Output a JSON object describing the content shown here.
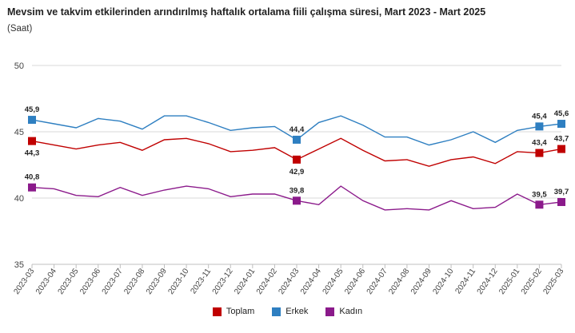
{
  "header": {
    "title": "Mevsim ve takvim etkilerinden arındırılmış haftalık ortalama fiili çalışma süresi, Mart 2023 - Mart 2025",
    "subtitle": "(Saat)"
  },
  "chart_data": {
    "type": "line",
    "title": "Mevsim ve takvim etkilerinden arındırılmış haftalık ortalama fiili çalışma süresi, Mart 2023 - Mart 2025",
    "ylabel": "(Saat)",
    "ylim": [
      35,
      50
    ],
    "yticks": [
      35,
      40,
      45,
      50
    ],
    "grid": true,
    "legend_position": "bottom",
    "categories": [
      "2023-03",
      "2023-04",
      "2023-05",
      "2023-06",
      "2023-07",
      "2023-08",
      "2023-09",
      "2023-10",
      "2023-11",
      "2023-12",
      "2024-01",
      "2024-02",
      "2024-03",
      "2024-04",
      "2024-05",
      "2024-06",
      "2024-07",
      "2024-08",
      "2024-09",
      "2024-10",
      "2024-11",
      "2024-12",
      "2025-01",
      "2025-02",
      "2025-03"
    ],
    "series": [
      {
        "name": "Toplam",
        "color": "#c00000",
        "values": [
          44.3,
          44.0,
          43.7,
          44.0,
          44.2,
          43.6,
          44.4,
          44.5,
          44.1,
          43.5,
          43.6,
          43.8,
          42.9,
          43.7,
          44.5,
          43.6,
          42.8,
          42.9,
          42.4,
          42.9,
          43.1,
          42.6,
          43.5,
          43.4,
          43.7
        ],
        "labels": [
          {
            "index": 0,
            "text": "44,3",
            "pos": "below"
          },
          {
            "index": 12,
            "text": "42,9",
            "pos": "below"
          },
          {
            "index": 23,
            "text": "43,4",
            "pos": "above"
          },
          {
            "index": 24,
            "text": "43,7",
            "pos": "above"
          }
        ],
        "markers": [
          0,
          12,
          23,
          24
        ]
      },
      {
        "name": "Erkek",
        "color": "#2e7fc1",
        "values": [
          45.9,
          45.6,
          45.3,
          46.0,
          45.8,
          45.2,
          46.2,
          46.2,
          45.7,
          45.1,
          45.3,
          45.4,
          44.4,
          45.7,
          46.2,
          45.5,
          44.6,
          44.6,
          44.0,
          44.4,
          45.0,
          44.2,
          45.1,
          45.4,
          45.6
        ],
        "labels": [
          {
            "index": 0,
            "text": "45,9",
            "pos": "above"
          },
          {
            "index": 12,
            "text": "44,4",
            "pos": "above"
          },
          {
            "index": 23,
            "text": "45,4",
            "pos": "above"
          },
          {
            "index": 24,
            "text": "45,6",
            "pos": "above"
          }
        ],
        "markers": [
          0,
          12,
          23,
          24
        ]
      },
      {
        "name": "Kadın",
        "color": "#8b1a8b",
        "values": [
          40.8,
          40.7,
          40.2,
          40.1,
          40.8,
          40.2,
          40.6,
          40.9,
          40.7,
          40.1,
          40.3,
          40.3,
          39.8,
          39.5,
          40.9,
          39.8,
          39.1,
          39.2,
          39.1,
          39.8,
          39.2,
          39.3,
          40.3,
          39.5,
          39.7
        ],
        "labels": [
          {
            "index": 0,
            "text": "40,8",
            "pos": "above"
          },
          {
            "index": 12,
            "text": "39,8",
            "pos": "above"
          },
          {
            "index": 23,
            "text": "39,5",
            "pos": "above"
          },
          {
            "index": 24,
            "text": "39,7",
            "pos": "above"
          }
        ],
        "markers": [
          0,
          12,
          23,
          24
        ]
      }
    ]
  },
  "legend": {
    "items": [
      {
        "label": "Toplam",
        "color": "#c00000"
      },
      {
        "label": "Erkek",
        "color": "#2e7fc1"
      },
      {
        "label": "Kadın",
        "color": "#8b1a8b"
      }
    ]
  }
}
